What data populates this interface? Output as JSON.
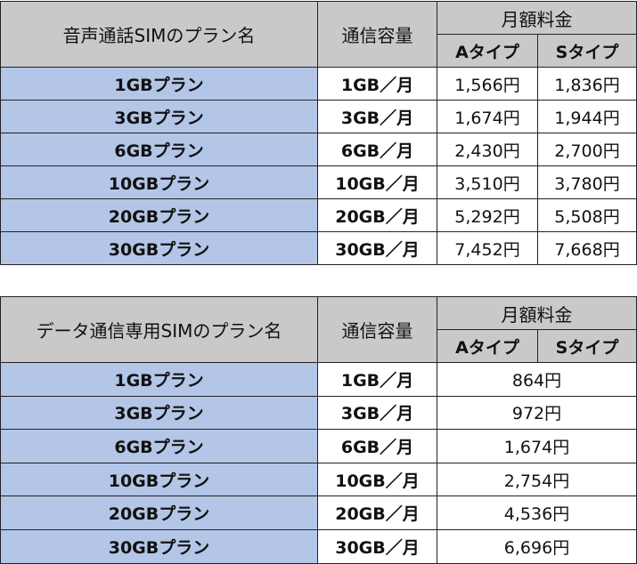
{
  "table1": {
    "headers": {
      "plan": "音声通話SIMのプラン名",
      "capacity": "通信容量",
      "monthly": "月額料金",
      "typeA": "Aタイプ",
      "typeS": "Sタイプ"
    },
    "rows": [
      {
        "plan": "1GBプラン",
        "capacity": "1GB／月",
        "a": "1,566円",
        "s": "1,836円"
      },
      {
        "plan": "3GBプラン",
        "capacity": "3GB／月",
        "a": "1,674円",
        "s": "1,944円"
      },
      {
        "plan": "6GBプラン",
        "capacity": "6GB／月",
        "a": "2,430円",
        "s": "2,700円"
      },
      {
        "plan": "10GBプラン",
        "capacity": "10GB／月",
        "a": "3,510円",
        "s": "3,780円"
      },
      {
        "plan": "20GBプラン",
        "capacity": "20GB／月",
        "a": "5,292円",
        "s": "5,508円"
      },
      {
        "plan": "30GBプラン",
        "capacity": "30GB／月",
        "a": "7,452円",
        "s": "7,668円"
      }
    ]
  },
  "table2": {
    "headers": {
      "plan": "データ通信専用SIMのプラン名",
      "capacity": "通信容量",
      "monthly": "月額料金",
      "typeA": "Aタイプ",
      "typeS": "Sタイプ"
    },
    "rows": [
      {
        "plan": "1GBプラン",
        "capacity": "1GB／月",
        "price": "864円"
      },
      {
        "plan": "3GBプラン",
        "capacity": "3GB／月",
        "price": "972円"
      },
      {
        "plan": "6GBプラン",
        "capacity": "6GB／月",
        "price": "1,674円"
      },
      {
        "plan": "10GBプラン",
        "capacity": "10GB／月",
        "price": "2,754円"
      },
      {
        "plan": "20GBプラン",
        "capacity": "20GB／月",
        "price": "4,536円"
      },
      {
        "plan": "30GBプラン",
        "capacity": "30GB／月",
        "price": "6,696円"
      }
    ]
  },
  "colors": {
    "header": "#c9c9c9",
    "plan_cell": "#b4c6e7",
    "border": "#222222"
  }
}
